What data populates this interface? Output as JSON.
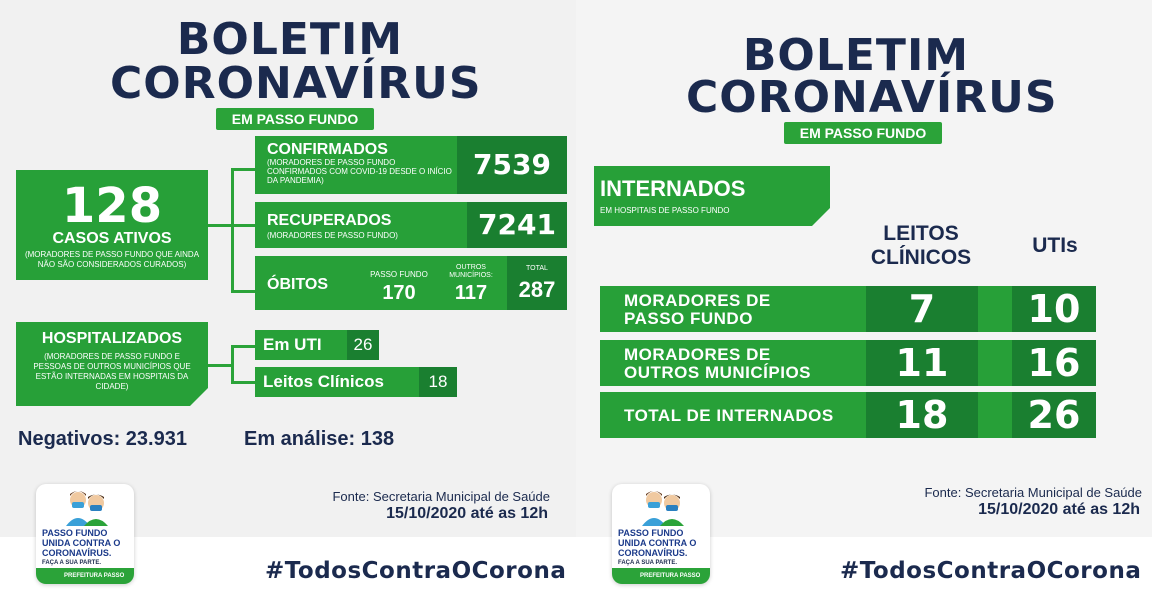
{
  "left": {
    "title_line1": "BOLETIM",
    "title_line2": "CORONAVÍRUS",
    "subtitle": "EM PASSO FUNDO",
    "active": {
      "number": "128",
      "label": "CASOS ATIVOS",
      "note": "(MORADORES DE PASSO FUNDO QUE AINDA NÃO SÃO CONSIDERADOS CURADOS)"
    },
    "confirmed": {
      "label": "CONFIRMADOS",
      "note": "(MORADORES DE PASSO FUNDO CONFIRMADOS COM COVID-19 DESDE O INÍCIO DA PANDEMIA)",
      "value": "7539"
    },
    "recovered": {
      "label": "RECUPERADOS",
      "note": "(MORADORES DE PASSO FUNDO)",
      "value": "7241"
    },
    "deaths": {
      "label": "ÓBITOS",
      "pf_label": "PASSO FUNDO",
      "pf_value": "170",
      "other_label": "OUTROS MUNICÍPIOS:",
      "other_value": "117",
      "total_label": "TOTAL",
      "total_value": "287"
    },
    "hospitalized": {
      "label": "HOSPITALIZADOS",
      "note": "(MORADORES DE PASSO FUNDO E PESSOAS DE OUTROS MUNICÍPIOS QUE ESTÃO INTERNADAS EM HOSPITAIS DA CIDADE)",
      "uti_label": "Em UTI",
      "uti_value": "26",
      "beds_label": "Leitos Clínicos",
      "beds_value": "18"
    },
    "negatives": "Negativos: 23.931",
    "analysis": "Em análise: 138",
    "source": "Fonte: Secretaria Municipal de Saúde",
    "date": "15/10/2020 até as 12h",
    "hashtag": "#TodosContraOCorona",
    "logo": {
      "text": "PASSO FUNDO UNIDA CONTRA O CORONAVÍRUS.",
      "sub": "FAÇA A SUA PARTE.",
      "bar": "PREFEITURA PASSO FUNDO"
    }
  },
  "right": {
    "title_line1": "BOLETIM",
    "title_line2": "CORONAVÍRUS",
    "subtitle": "EM PASSO FUNDO",
    "internados": "INTERNADOS",
    "internados_note": "EM HOSPITAIS DE PASSO FUNDO",
    "col1_line1": "LEITOS",
    "col1_line2": "CLÍNICOS",
    "col2": "UTIs",
    "rows": [
      {
        "line1": "MORADORES DE",
        "line2": "PASSO FUNDO",
        "clinicos": "7",
        "utis": "10"
      },
      {
        "line1": "MORADORES DE",
        "line2": "OUTROS MUNICÍPIOS",
        "clinicos": "11",
        "utis": "16"
      },
      {
        "line1": "TOTAL DE INTERNADOS",
        "line2": "",
        "clinicos": "18",
        "utis": "26"
      }
    ],
    "source": "Fonte: Secretaria Municipal de Saúde",
    "date": "15/10/2020 até as 12h",
    "hashtag": "#TodosContraOCorona",
    "logo": {
      "text": "PASSO FUNDO UNIDA CONTRA O CORONAVÍRUS.",
      "sub": "FAÇA A SUA PARTE.",
      "bar": "PREFEITURA PASSO FUNDO"
    }
  },
  "colors": {
    "navy": "#1b2a4e",
    "green": "#27a038",
    "dark_green": "#1a7f30"
  }
}
